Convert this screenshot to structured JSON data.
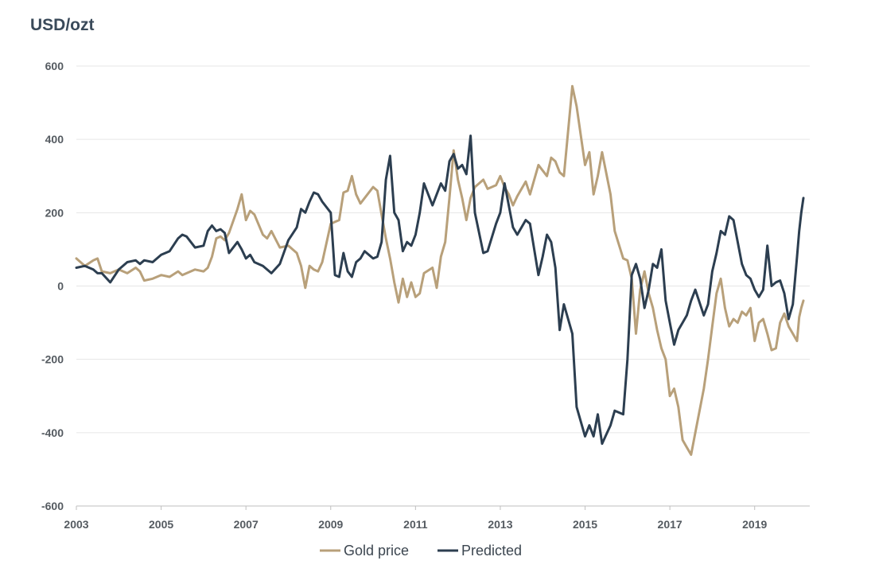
{
  "chart_data": {
    "type": "line",
    "title": "",
    "ylabel": "USD/ozt",
    "xlabel": "",
    "ylim": [
      -600,
      600
    ],
    "yticks": [
      600,
      400,
      200,
      0,
      -200,
      -400,
      -600
    ],
    "yticklabels": [
      "600",
      "400",
      "200",
      "0",
      "-200",
      "-400",
      "-600"
    ],
    "xlim": [
      2003,
      2020.3
    ],
    "xticks": [
      2003,
      2005,
      2007,
      2009,
      2011,
      2013,
      2015,
      2017,
      2019
    ],
    "xticklabels": [
      "2003",
      "2005",
      "2007",
      "2009",
      "2011",
      "2013",
      "2015",
      "2017",
      "2019"
    ],
    "grid": true,
    "legend_position": "bottom-center",
    "series": [
      {
        "name": "Gold price",
        "color": "#b8a07a",
        "points": [
          [
            2003.0,
            75
          ],
          [
            2003.2,
            55
          ],
          [
            2003.4,
            70
          ],
          [
            2003.5,
            75
          ],
          [
            2003.6,
            40
          ],
          [
            2003.8,
            35
          ],
          [
            2004.0,
            45
          ],
          [
            2004.2,
            35
          ],
          [
            2004.4,
            50
          ],
          [
            2004.5,
            40
          ],
          [
            2004.6,
            15
          ],
          [
            2004.8,
            20
          ],
          [
            2005.0,
            30
          ],
          [
            2005.2,
            25
          ],
          [
            2005.4,
            40
          ],
          [
            2005.5,
            30
          ],
          [
            2005.6,
            35
          ],
          [
            2005.8,
            45
          ],
          [
            2006.0,
            40
          ],
          [
            2006.1,
            50
          ],
          [
            2006.2,
            80
          ],
          [
            2006.3,
            130
          ],
          [
            2006.4,
            135
          ],
          [
            2006.5,
            125
          ],
          [
            2006.6,
            145
          ],
          [
            2006.8,
            210
          ],
          [
            2006.9,
            250
          ],
          [
            2007.0,
            180
          ],
          [
            2007.1,
            205
          ],
          [
            2007.2,
            195
          ],
          [
            2007.4,
            140
          ],
          [
            2007.5,
            130
          ],
          [
            2007.6,
            150
          ],
          [
            2007.8,
            105
          ],
          [
            2008.0,
            110
          ],
          [
            2008.2,
            90
          ],
          [
            2008.3,
            55
          ],
          [
            2008.4,
            -5
          ],
          [
            2008.5,
            55
          ],
          [
            2008.6,
            45
          ],
          [
            2008.7,
            40
          ],
          [
            2008.8,
            65
          ],
          [
            2009.0,
            170
          ],
          [
            2009.1,
            175
          ],
          [
            2009.2,
            180
          ],
          [
            2009.3,
            255
          ],
          [
            2009.4,
            260
          ],
          [
            2009.5,
            300
          ],
          [
            2009.6,
            250
          ],
          [
            2009.7,
            225
          ],
          [
            2009.8,
            240
          ],
          [
            2010.0,
            270
          ],
          [
            2010.1,
            260
          ],
          [
            2010.2,
            195
          ],
          [
            2010.3,
            130
          ],
          [
            2010.4,
            75
          ],
          [
            2010.5,
            10
          ],
          [
            2010.6,
            -45
          ],
          [
            2010.7,
            20
          ],
          [
            2010.8,
            -30
          ],
          [
            2010.9,
            10
          ],
          [
            2011.0,
            -30
          ],
          [
            2011.1,
            -20
          ],
          [
            2011.2,
            35
          ],
          [
            2011.4,
            50
          ],
          [
            2011.5,
            -5
          ],
          [
            2011.6,
            80
          ],
          [
            2011.7,
            120
          ],
          [
            2011.8,
            240
          ],
          [
            2011.9,
            370
          ],
          [
            2012.0,
            290
          ],
          [
            2012.1,
            240
          ],
          [
            2012.2,
            180
          ],
          [
            2012.3,
            240
          ],
          [
            2012.4,
            270
          ],
          [
            2012.6,
            290
          ],
          [
            2012.7,
            265
          ],
          [
            2012.9,
            275
          ],
          [
            2013.0,
            300
          ],
          [
            2013.1,
            270
          ],
          [
            2013.2,
            250
          ],
          [
            2013.3,
            220
          ],
          [
            2013.4,
            245
          ],
          [
            2013.6,
            285
          ],
          [
            2013.7,
            250
          ],
          [
            2013.9,
            330
          ],
          [
            2014.0,
            315
          ],
          [
            2014.1,
            300
          ],
          [
            2014.2,
            350
          ],
          [
            2014.3,
            340
          ],
          [
            2014.4,
            310
          ],
          [
            2014.5,
            300
          ],
          [
            2014.7,
            545
          ],
          [
            2014.8,
            490
          ],
          [
            2015.0,
            330
          ],
          [
            2015.1,
            365
          ],
          [
            2015.2,
            250
          ],
          [
            2015.3,
            300
          ],
          [
            2015.4,
            365
          ],
          [
            2015.6,
            250
          ],
          [
            2015.7,
            150
          ],
          [
            2015.9,
            75
          ],
          [
            2016.0,
            70
          ],
          [
            2016.1,
            20
          ],
          [
            2016.2,
            -130
          ],
          [
            2016.3,
            -10
          ],
          [
            2016.4,
            40
          ],
          [
            2016.5,
            -20
          ],
          [
            2016.6,
            -60
          ],
          [
            2016.7,
            -120
          ],
          [
            2016.8,
            -170
          ],
          [
            2016.9,
            -200
          ],
          [
            2017.0,
            -300
          ],
          [
            2017.1,
            -280
          ],
          [
            2017.2,
            -330
          ],
          [
            2017.3,
            -420
          ],
          [
            2017.4,
            -440
          ],
          [
            2017.5,
            -460
          ],
          [
            2017.6,
            -400
          ],
          [
            2017.8,
            -280
          ],
          [
            2017.9,
            -200
          ],
          [
            2018.0,
            -110
          ],
          [
            2018.1,
            -20
          ],
          [
            2018.2,
            20
          ],
          [
            2018.3,
            -60
          ],
          [
            2018.4,
            -110
          ],
          [
            2018.5,
            -90
          ],
          [
            2018.6,
            -100
          ],
          [
            2018.7,
            -70
          ],
          [
            2018.8,
            -80
          ],
          [
            2018.9,
            -60
          ],
          [
            2019.0,
            -150
          ],
          [
            2019.1,
            -100
          ],
          [
            2019.2,
            -90
          ],
          [
            2019.3,
            -130
          ],
          [
            2019.4,
            -175
          ],
          [
            2019.5,
            -170
          ],
          [
            2019.6,
            -100
          ],
          [
            2019.7,
            -75
          ],
          [
            2019.8,
            -110
          ],
          [
            2019.9,
            -130
          ],
          [
            2020.0,
            -150
          ],
          [
            2020.05,
            -85
          ],
          [
            2020.1,
            -60
          ],
          [
            2020.15,
            -40
          ]
        ]
      },
      {
        "name": "Predicted",
        "color": "#2c3e50",
        "points": [
          [
            2003.0,
            50
          ],
          [
            2003.2,
            55
          ],
          [
            2003.4,
            45
          ],
          [
            2003.5,
            35
          ],
          [
            2003.6,
            35
          ],
          [
            2003.8,
            10
          ],
          [
            2004.0,
            45
          ],
          [
            2004.2,
            65
          ],
          [
            2004.4,
            70
          ],
          [
            2004.5,
            60
          ],
          [
            2004.6,
            70
          ],
          [
            2004.8,
            65
          ],
          [
            2005.0,
            85
          ],
          [
            2005.2,
            95
          ],
          [
            2005.4,
            130
          ],
          [
            2005.5,
            140
          ],
          [
            2005.6,
            135
          ],
          [
            2005.8,
            105
          ],
          [
            2006.0,
            110
          ],
          [
            2006.1,
            150
          ],
          [
            2006.2,
            165
          ],
          [
            2006.3,
            150
          ],
          [
            2006.4,
            155
          ],
          [
            2006.5,
            145
          ],
          [
            2006.6,
            90
          ],
          [
            2006.8,
            120
          ],
          [
            2006.9,
            100
          ],
          [
            2007.0,
            75
          ],
          [
            2007.1,
            85
          ],
          [
            2007.2,
            65
          ],
          [
            2007.4,
            55
          ],
          [
            2007.5,
            45
          ],
          [
            2007.6,
            35
          ],
          [
            2007.8,
            60
          ],
          [
            2008.0,
            125
          ],
          [
            2008.2,
            160
          ],
          [
            2008.3,
            210
          ],
          [
            2008.4,
            200
          ],
          [
            2008.5,
            230
          ],
          [
            2008.6,
            255
          ],
          [
            2008.7,
            250
          ],
          [
            2008.8,
            230
          ],
          [
            2009.0,
            200
          ],
          [
            2009.1,
            30
          ],
          [
            2009.2,
            25
          ],
          [
            2009.3,
            90
          ],
          [
            2009.4,
            40
          ],
          [
            2009.5,
            25
          ],
          [
            2009.6,
            65
          ],
          [
            2009.7,
            75
          ],
          [
            2009.8,
            95
          ],
          [
            2010.0,
            75
          ],
          [
            2010.1,
            80
          ],
          [
            2010.2,
            120
          ],
          [
            2010.3,
            290
          ],
          [
            2010.4,
            355
          ],
          [
            2010.5,
            200
          ],
          [
            2010.6,
            180
          ],
          [
            2010.7,
            95
          ],
          [
            2010.8,
            120
          ],
          [
            2010.9,
            110
          ],
          [
            2011.0,
            140
          ],
          [
            2011.1,
            200
          ],
          [
            2011.2,
            280
          ],
          [
            2011.4,
            220
          ],
          [
            2011.5,
            250
          ],
          [
            2011.6,
            280
          ],
          [
            2011.7,
            260
          ],
          [
            2011.8,
            340
          ],
          [
            2011.9,
            360
          ],
          [
            2012.0,
            320
          ],
          [
            2012.1,
            330
          ],
          [
            2012.2,
            305
          ],
          [
            2012.3,
            410
          ],
          [
            2012.4,
            200
          ],
          [
            2012.6,
            90
          ],
          [
            2012.7,
            95
          ],
          [
            2012.9,
            170
          ],
          [
            2013.0,
            200
          ],
          [
            2013.1,
            280
          ],
          [
            2013.2,
            220
          ],
          [
            2013.3,
            160
          ],
          [
            2013.4,
            140
          ],
          [
            2013.6,
            180
          ],
          [
            2013.7,
            170
          ],
          [
            2013.9,
            30
          ],
          [
            2014.0,
            80
          ],
          [
            2014.1,
            140
          ],
          [
            2014.2,
            120
          ],
          [
            2014.3,
            50
          ],
          [
            2014.4,
            -120
          ],
          [
            2014.5,
            -50
          ],
          [
            2014.7,
            -130
          ],
          [
            2014.8,
            -330
          ],
          [
            2015.0,
            -410
          ],
          [
            2015.1,
            -380
          ],
          [
            2015.2,
            -410
          ],
          [
            2015.3,
            -350
          ],
          [
            2015.4,
            -430
          ],
          [
            2015.6,
            -380
          ],
          [
            2015.7,
            -340
          ],
          [
            2015.9,
            -350
          ],
          [
            2016.0,
            -200
          ],
          [
            2016.1,
            30
          ],
          [
            2016.2,
            60
          ],
          [
            2016.3,
            20
          ],
          [
            2016.4,
            -60
          ],
          [
            2016.5,
            -10
          ],
          [
            2016.6,
            60
          ],
          [
            2016.7,
            50
          ],
          [
            2016.8,
            100
          ],
          [
            2016.9,
            -40
          ],
          [
            2017.0,
            -100
          ],
          [
            2017.1,
            -160
          ],
          [
            2017.2,
            -120
          ],
          [
            2017.3,
            -100
          ],
          [
            2017.4,
            -80
          ],
          [
            2017.5,
            -40
          ],
          [
            2017.6,
            -10
          ],
          [
            2017.8,
            -80
          ],
          [
            2017.9,
            -50
          ],
          [
            2018.0,
            40
          ],
          [
            2018.1,
            90
          ],
          [
            2018.2,
            150
          ],
          [
            2018.3,
            140
          ],
          [
            2018.4,
            190
          ],
          [
            2018.5,
            180
          ],
          [
            2018.6,
            120
          ],
          [
            2018.7,
            60
          ],
          [
            2018.8,
            30
          ],
          [
            2018.9,
            20
          ],
          [
            2019.0,
            -10
          ],
          [
            2019.1,
            -30
          ],
          [
            2019.2,
            -10
          ],
          [
            2019.3,
            110
          ],
          [
            2019.4,
            0
          ],
          [
            2019.5,
            10
          ],
          [
            2019.6,
            15
          ],
          [
            2019.7,
            -20
          ],
          [
            2019.8,
            -90
          ],
          [
            2019.9,
            -50
          ],
          [
            2020.0,
            80
          ],
          [
            2020.05,
            150
          ],
          [
            2020.1,
            200
          ],
          [
            2020.15,
            240
          ]
        ]
      }
    ]
  }
}
